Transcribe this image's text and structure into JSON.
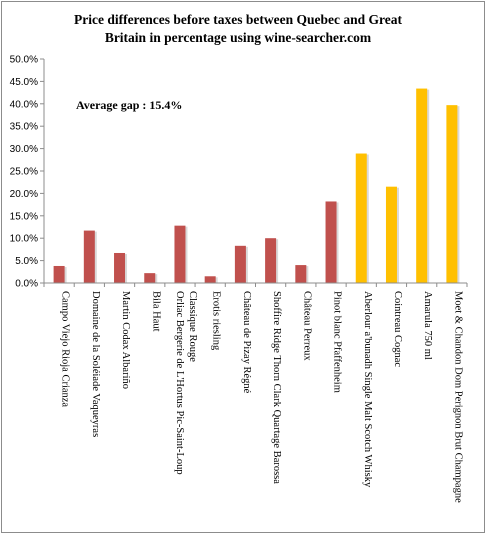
{
  "chart_data": {
    "type": "bar",
    "title_lines": [
      "Price differences before taxes between Quebec and Great",
      "Britain in percentage using wine-searcher.com"
    ],
    "annotation": "Average gap : 15.4%",
    "ylim": [
      0,
      50
    ],
    "yticks": [
      0,
      5,
      10,
      15,
      20,
      25,
      30,
      35,
      40,
      45,
      50
    ],
    "ytick_labels": [
      "0.0%",
      "5.0%",
      "10.0%",
      "15.0%",
      "20.0%",
      "25.0%",
      "30.0%",
      "35.0%",
      "40.0%",
      "45.0%",
      "50.0%"
    ],
    "grid": false,
    "legend": "none",
    "categories": [
      "Campo Viejo Rioja Crianza",
      "Domaine de la Soléiade Vaqueyras",
      "Martin Codax Albariño",
      "Bila Haut",
      "Orliac Bergerie de L'Hortus Pic-Saint-Loup Classique Rouge",
      "Erotis riesling",
      "Château de Pizay Régné",
      "Shoffire Ridge Thorn Clark Quartage Barossa",
      "Château Perreux",
      "Pinot blanc Pfaffenheim",
      "Aberlour a'bunadh Single Malt Scotch Whisky",
      "Cointreau Cognac",
      "Amarula 750 ml",
      "Moet & Chandon Dom Perignon Brut Champagne"
    ],
    "category_lines": [
      [
        "Campo Viejo Rioja Crianza"
      ],
      [
        "Domaine de la Soléiade Vaqueyras"
      ],
      [
        "Martin Codax Albariño"
      ],
      [
        "Bila Haut"
      ],
      [
        "Orliac Bergerie de L'Hortus Pic-Saint-Loup",
        "Classique Rouge"
      ],
      [
        "Erotis riesling"
      ],
      [
        "Château de Pizay Régné"
      ],
      [
        "Shoffire Ridge Thorn Clark Quartage Barossa"
      ],
      [
        "Château Perreux"
      ],
      [
        "Pinot blanc Pfaffenheim"
      ],
      [
        "Aberlour a'bunadh Single Malt Scotch Whisky"
      ],
      [
        "Cointreau Cognac"
      ],
      [
        "Amarula 750 ml"
      ],
      [
        "Moet & Chandon Dom Perignon Brut Champagne"
      ]
    ],
    "values": [
      3.8,
      11.7,
      6.7,
      2.2,
      12.8,
      1.5,
      8.3,
      10.0,
      4.0,
      18.2,
      28.9,
      21.5,
      43.4,
      39.7
    ],
    "bar_colors": [
      "#c0504d",
      "#c0504d",
      "#c0504d",
      "#c0504d",
      "#c0504d",
      "#c0504d",
      "#c0504d",
      "#c0504d",
      "#c0504d",
      "#c0504d",
      "#ffc000",
      "#ffc000",
      "#ffc000",
      "#ffc000"
    ],
    "colors": {
      "wine": "#c0504d",
      "spirits": "#ffc000",
      "axis": "#8c8c8c",
      "text": "#000000"
    }
  }
}
